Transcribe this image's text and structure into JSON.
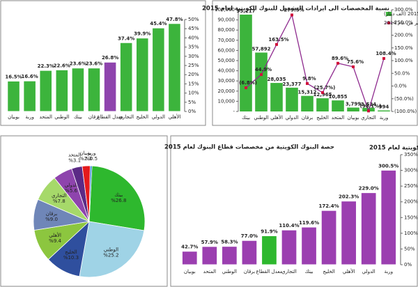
{
  "chart_data": [
    {
      "type": "bar",
      "yaxis_side": "right",
      "title": "نسبة المخصصات الى ايرادات التشغيل للبنوك الكويتية لعام 2015",
      "categories": [
        "بوبيان",
        "وربة",
        "المتحد",
        "الوطني",
        "بيتك",
        "برقان",
        "معدل القطاع",
        "التجاري",
        "الخليج",
        "الدولي",
        "الأهلي"
      ],
      "values": [
        16.5,
        16.6,
        22.3,
        22.6,
        23.6,
        23.6,
        26.8,
        37.4,
        39.9,
        45.4,
        47.8
      ],
      "value_labels": [
        "16.5%",
        "16.6%",
        "22.3%",
        "22.6%",
        "23.6%",
        "23.6%",
        "26.8%",
        "37.4%",
        "39.9%",
        "45.4%",
        "47.8%"
      ],
      "colors": [
        "#3cb43c",
        "#3cb43c",
        "#3cb43c",
        "#3cb43c",
        "#3cb43c",
        "#3cb43c",
        "#8e44ad",
        "#3cb43c",
        "#3cb43c",
        "#3cb43c",
        "#3cb43c"
      ],
      "ylim": [
        0,
        50
      ],
      "yticks": [
        {
          "value": 0,
          "label": "0%"
        },
        {
          "value": 5,
          "label": "5%"
        },
        {
          "value": 10,
          "label": "10%"
        },
        {
          "value": 15,
          "label": "15%"
        },
        {
          "value": 20,
          "label": "20%"
        },
        {
          "value": 25,
          "label": "25%"
        },
        {
          "value": 30,
          "label": "30%"
        },
        {
          "value": 35,
          "label": "35%"
        },
        {
          "value": 40,
          "label": "40%"
        },
        {
          "value": 45,
          "label": "45%"
        },
        {
          "value": 50,
          "label": "50%"
        }
      ]
    },
    {
      "type": "combo",
      "categories": [
        "بيتك",
        "الوطني",
        "الأهلي",
        "الدولي",
        "برقان",
        "الخليج",
        "المتحد",
        "بوبيان",
        "التجاري",
        "وربة"
      ],
      "series": [
        {
          "name": "المخصصات خلال الربع الاخير من عام 2015 (الف دينار)",
          "color": "#3cb43c",
          "type": "bar",
          "values": [
            95217,
            57892,
            28035,
            23377,
            15312,
            12965,
            10855,
            3799,
            3524,
            994
          ],
          "value_labels": [
            "95,217",
            "57,892",
            "28,035",
            "23,377",
            "15,312",
            "12,965",
            "10,855",
            "3,799",
            "3,524",
            "994"
          ]
        },
        {
          "name": "نسبة النمو مقارنة مع الربع الاخير من عام 2014",
          "color": "#8e2a8e",
          "type": "line",
          "axis": "y2",
          "values": [
            -6.8,
            44.9,
            163.5,
            279.5,
            9.8,
            -25.7,
            89.6,
            75.6,
            -98.1,
            108.4
          ],
          "value_labels": [
            "(6.8%)",
            "44.9%",
            "163.5%",
            "279.5%",
            "9.8%",
            "(25.7%)",
            "89.6%",
            "75.6%",
            "(98.1%)",
            "108.4%"
          ]
        }
      ],
      "ylim": [
        0,
        100000
      ],
      "yticks": [
        {
          "value": 0,
          "label": "-"
        },
        {
          "value": 10000,
          "label": "10,000"
        },
        {
          "value": 20000,
          "label": "20,000"
        },
        {
          "value": 30000,
          "label": "30,000"
        },
        {
          "value": 40000,
          "label": "40,000"
        },
        {
          "value": 50000,
          "label": "50,000"
        },
        {
          "value": 60000,
          "label": "60,000"
        },
        {
          "value": 70000,
          "label": "70,000"
        },
        {
          "value": 80000,
          "label": "80,000"
        },
        {
          "value": 90000,
          "label": "90,000"
        },
        {
          "value": 100000,
          "label": "100,000"
        }
      ],
      "y2lim": [
        -100,
        300
      ],
      "y2ticks": [
        {
          "value": -100,
          "label": "(100.0%)"
        },
        {
          "value": -50,
          "label": "(50.0%)"
        },
        {
          "value": 0,
          "label": "0.0%"
        },
        {
          "value": 50,
          "label": "50.0%"
        },
        {
          "value": 100,
          "label": "100.0%"
        },
        {
          "value": 150,
          "label": "150.0%"
        },
        {
          "value": 200,
          "label": "200.0%"
        },
        {
          "value": 250,
          "label": "250.0%"
        },
        {
          "value": 300,
          "label": "300.0%"
        }
      ]
    },
    {
      "type": "pie",
      "title": "حصة البنوك الكويتية من مخصصات قطاع البنوك لعام 2015",
      "categories": [
        "بيتك",
        "الوطني",
        "الخليج",
        "الأهلي",
        "برقان",
        "التجاري",
        "الدولي",
        "المتحد",
        "بوبيان",
        "وربة"
      ],
      "values": [
        26.8,
        25.2,
        10.3,
        9.4,
        9.0,
        7.8,
        5.6,
        3.1,
        2.3,
        0.5
      ],
      "value_labels": [
        "%26.8",
        "%25.2",
        "%10.3",
        "%9.4",
        "%9.0",
        "%7.8",
        "%5.6",
        "%3.1",
        "%2.3",
        "%0.5"
      ],
      "colors": [
        "#2eb82e",
        "#9fd3e6",
        "#2f4f9e",
        "#8cc63f",
        "#6f86b8",
        "#a6d96a",
        "#8e44ad",
        "#5b2a86",
        "#e41a1c",
        "#1f78d1"
      ]
    },
    {
      "type": "bar",
      "yaxis_side": "right",
      "title": "نسبة المخصصات الى صافي الارباح للبنوك الكويتية لعام 2015",
      "categories": [
        "بوبيان",
        "المتحد",
        "الوطني",
        "برقان",
        "معدل القطاع",
        "التجاري",
        "بيتك",
        "الخليج",
        "الأهلي",
        "الدولي",
        "وربة"
      ],
      "values": [
        42.7,
        57.9,
        58.3,
        77.0,
        91.9,
        110.4,
        119.6,
        172.4,
        202.3,
        229.0,
        300.5
      ],
      "value_labels": [
        "42.7%",
        "57.9%",
        "58.3%",
        "77.0%",
        "91.9%",
        "110.4%",
        "119.6%",
        "172.4%",
        "202.3%",
        "229.0%",
        "300.5%"
      ],
      "colors": [
        "#9b3fb0",
        "#9b3fb0",
        "#9b3fb0",
        "#9b3fb0",
        "#2eb82e",
        "#9b3fb0",
        "#9b3fb0",
        "#9b3fb0",
        "#9b3fb0",
        "#9b3fb0",
        "#9b3fb0"
      ],
      "ylim": [
        0,
        350
      ],
      "yticks": [
        {
          "value": 0,
          "label": "0%"
        },
        {
          "value": 50,
          "label": "50%"
        },
        {
          "value": 100,
          "label": "100%"
        },
        {
          "value": 150,
          "label": "150%"
        },
        {
          "value": 200,
          "label": "200%"
        },
        {
          "value": 250,
          "label": "250%"
        },
        {
          "value": 300,
          "label": "300%"
        },
        {
          "value": 350,
          "label": "350%"
        }
      ]
    }
  ]
}
